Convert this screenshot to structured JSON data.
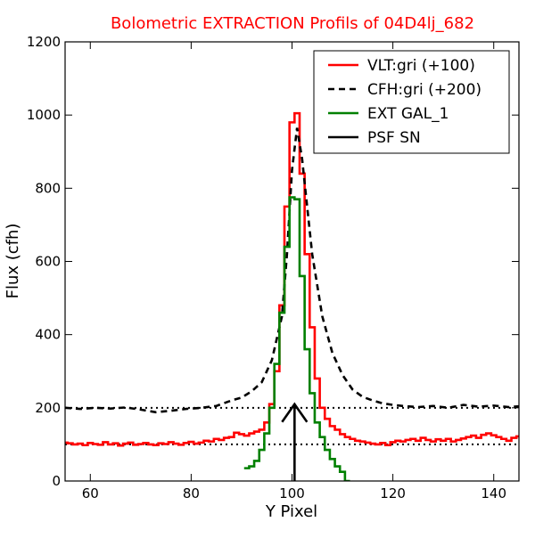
{
  "chart_data": {
    "type": "line",
    "title": "Bolometric EXTRACTION Profils of 04D4lj_682",
    "title_color": "#ff0000",
    "xlabel": "Y Pixel",
    "ylabel": "Flux (cfh)",
    "xlim": [
      55,
      145
    ],
    "ylim": [
      0,
      1200
    ],
    "xticks": [
      60,
      80,
      100,
      120,
      140
    ],
    "yticks": [
      0,
      200,
      400,
      600,
      800,
      1000,
      1200
    ],
    "xtick_labels": [
      "60",
      "80",
      "100",
      "120",
      "140"
    ],
    "ytick_labels": [
      "0",
      "200",
      "400",
      "600",
      "800",
      "1000",
      "1200"
    ],
    "grid": false,
    "legend_position": "top-right",
    "reference_lines": [
      {
        "y": 200,
        "style": "dotted",
        "color": "#000000"
      },
      {
        "y": 100,
        "style": "dotted",
        "color": "#000000"
      }
    ],
    "series": [
      {
        "name": "VLT:gri (+100)",
        "color": "#ff0000",
        "style": "steps",
        "x": [
          55,
          56,
          57,
          58,
          59,
          60,
          61,
          62,
          63,
          64,
          65,
          66,
          67,
          68,
          69,
          70,
          71,
          72,
          73,
          74,
          75,
          76,
          77,
          78,
          79,
          80,
          81,
          82,
          83,
          84,
          85,
          86,
          87,
          88,
          89,
          90,
          91,
          92,
          93,
          94,
          95,
          96,
          97,
          98,
          99,
          100,
          101,
          102,
          103,
          104,
          105,
          106,
          107,
          108,
          109,
          110,
          111,
          112,
          113,
          114,
          115,
          116,
          117,
          118,
          119,
          120,
          121,
          122,
          123,
          124,
          125,
          126,
          127,
          128,
          129,
          130,
          131,
          132,
          133,
          134,
          135,
          136,
          137,
          138,
          139,
          140,
          141,
          142,
          143,
          144,
          145
        ],
        "y": [
          105,
          103,
          100,
          102,
          98,
          104,
          101,
          99,
          106,
          100,
          103,
          97,
          102,
          105,
          99,
          101,
          104,
          100,
          98,
          103,
          101,
          106,
          102,
          99,
          104,
          107,
          102,
          105,
          110,
          108,
          115,
          112,
          118,
          120,
          132,
          128,
          124,
          130,
          135,
          140,
          160,
          210,
          300,
          480,
          750,
          980,
          1005,
          840,
          620,
          420,
          280,
          200,
          170,
          150,
          140,
          128,
          120,
          115,
          110,
          108,
          105,
          102,
          100,
          104,
          98,
          106,
          110,
          108,
          112,
          115,
          110,
          118,
          112,
          108,
          114,
          110,
          115,
          108,
          112,
          116,
          120,
          124,
          118,
          126,
          130,
          125,
          120,
          115,
          110,
          118,
          122
        ]
      },
      {
        "name": "CFH:gri (+200)",
        "color": "#000000",
        "style": "dashed",
        "x": [
          55,
          58,
          61,
          64,
          67,
          70,
          73,
          76,
          79,
          82,
          85,
          88,
          90,
          92,
          94,
          96,
          98,
          99,
          100,
          101,
          102,
          104,
          106,
          108,
          110,
          112,
          114,
          116,
          118,
          120,
          122,
          125,
          128,
          131,
          134,
          137,
          140,
          143,
          145
        ],
        "y": [
          200,
          197,
          200,
          198,
          201,
          195,
          188,
          192,
          197,
          200,
          205,
          220,
          228,
          245,
          270,
          330,
          450,
          620,
          850,
          965,
          880,
          620,
          450,
          350,
          290,
          250,
          230,
          220,
          212,
          208,
          205,
          202,
          205,
          200,
          208,
          203,
          206,
          202,
          204
        ]
      },
      {
        "name": "EXT GAL_1",
        "color": "#008000",
        "style": "steps",
        "x": [
          91,
          92,
          93,
          94,
          95,
          96,
          97,
          98,
          99,
          100,
          101,
          102,
          103,
          104,
          105,
          106,
          107,
          108,
          109,
          110,
          111
        ],
        "y": [
          35,
          40,
          55,
          85,
          130,
          200,
          320,
          460,
          640,
          775,
          770,
          560,
          360,
          240,
          160,
          120,
          85,
          60,
          40,
          25,
          0
        ]
      },
      {
        "name": "PSF SN",
        "color": "#000000",
        "style": "arrow",
        "x": [
          100.5,
          100.5
        ],
        "y": [
          0,
          210
        ]
      }
    ]
  }
}
